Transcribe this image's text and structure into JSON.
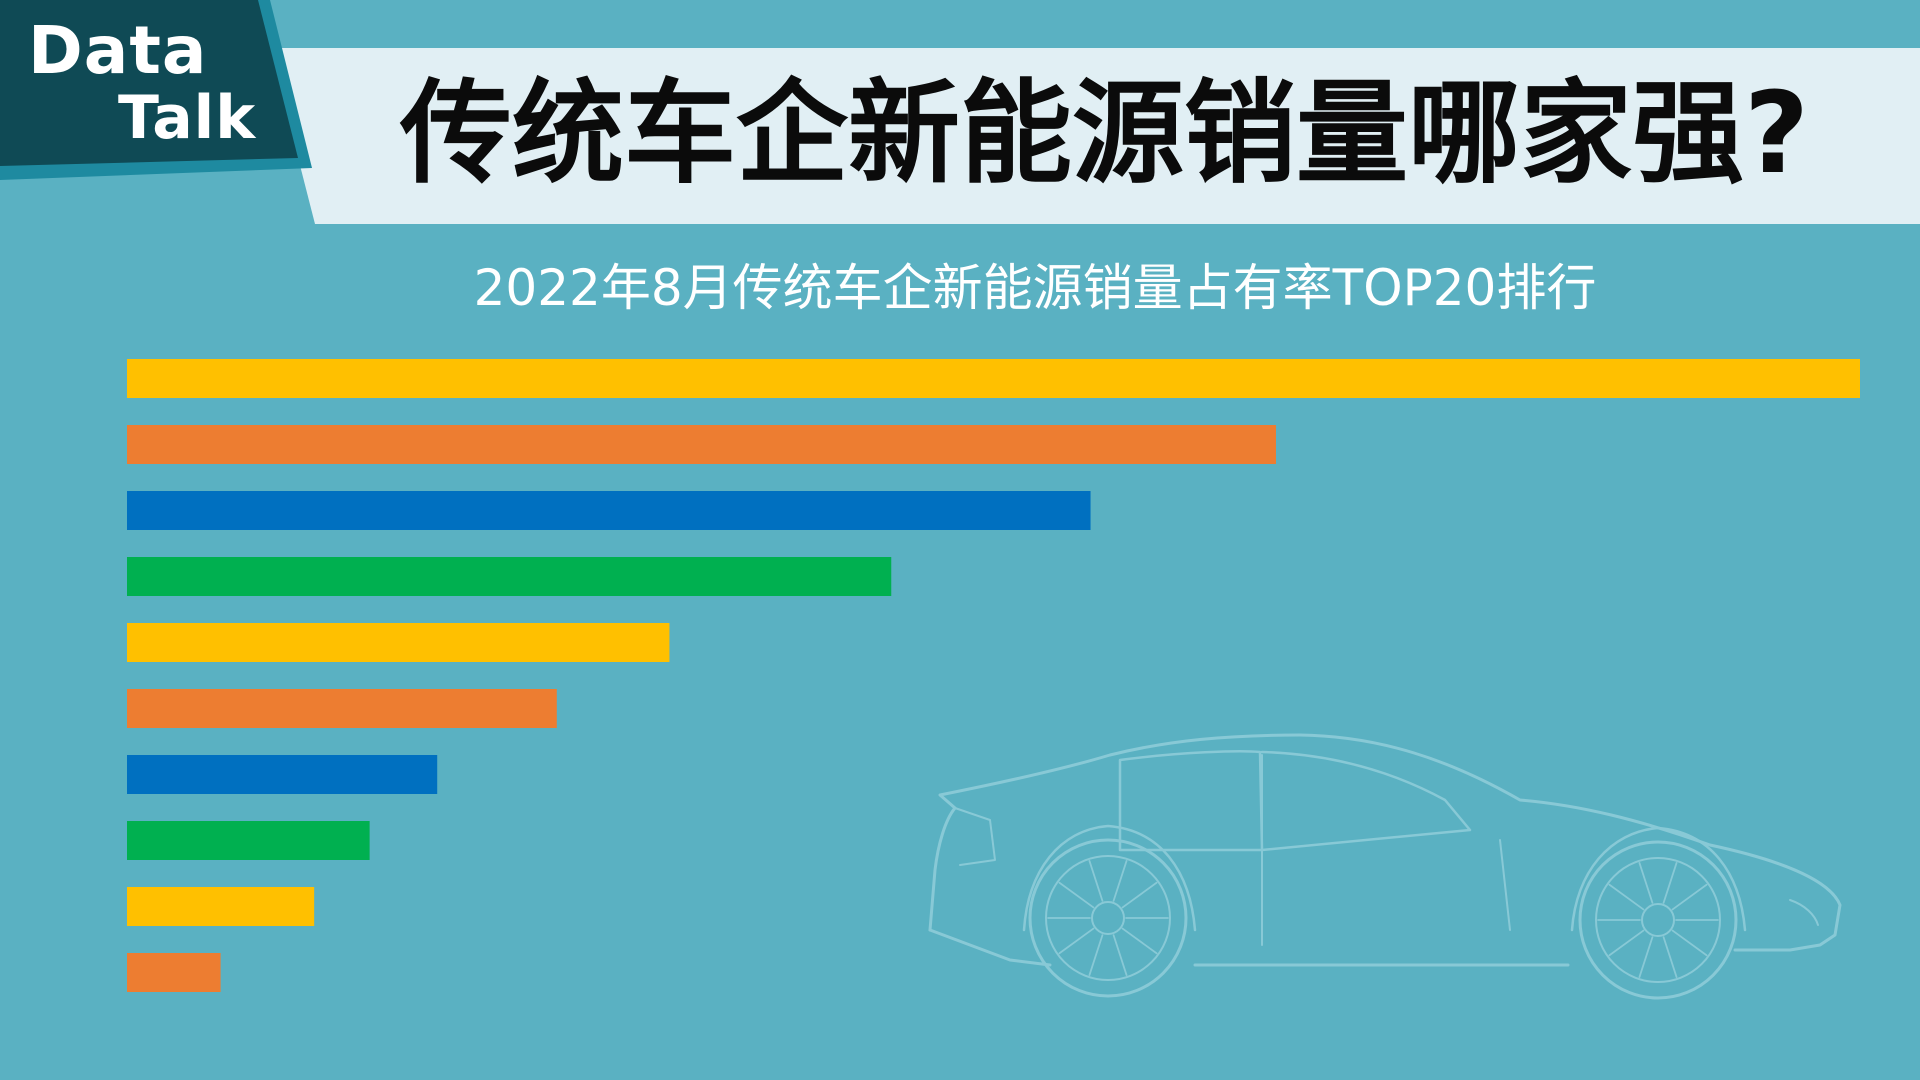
{
  "header": {
    "badge_line1": "Data",
    "badge_line2": "Talk",
    "title": "传统车企新能源销量哪家强?"
  },
  "chart_data": {
    "type": "bar",
    "orientation": "horizontal",
    "title": "2022年8月传统车企新能源销量占有率TOP20排行",
    "values": [
      100,
      66.3,
      55.6,
      44.1,
      31.3,
      24.8,
      17.9,
      14.0,
      10.8,
      5.4
    ],
    "xlim": [
      0,
      100
    ],
    "grid": false,
    "colors": [
      "#ffc000",
      "#ed7d31",
      "#0070c0",
      "#00b050",
      "#ffc000",
      "#ed7d31",
      "#0070c0",
      "#00b050",
      "#ffc000",
      "#ed7d31"
    ]
  },
  "colors": {
    "background": "#5ab1c2",
    "title_band": "#e1eff4",
    "badge_dark": "#0f4a55",
    "badge_accent": "#1e8aa0",
    "car_outline": "#88c9d6"
  },
  "decoration": {
    "illustration": "sports-car-outline-icon"
  }
}
